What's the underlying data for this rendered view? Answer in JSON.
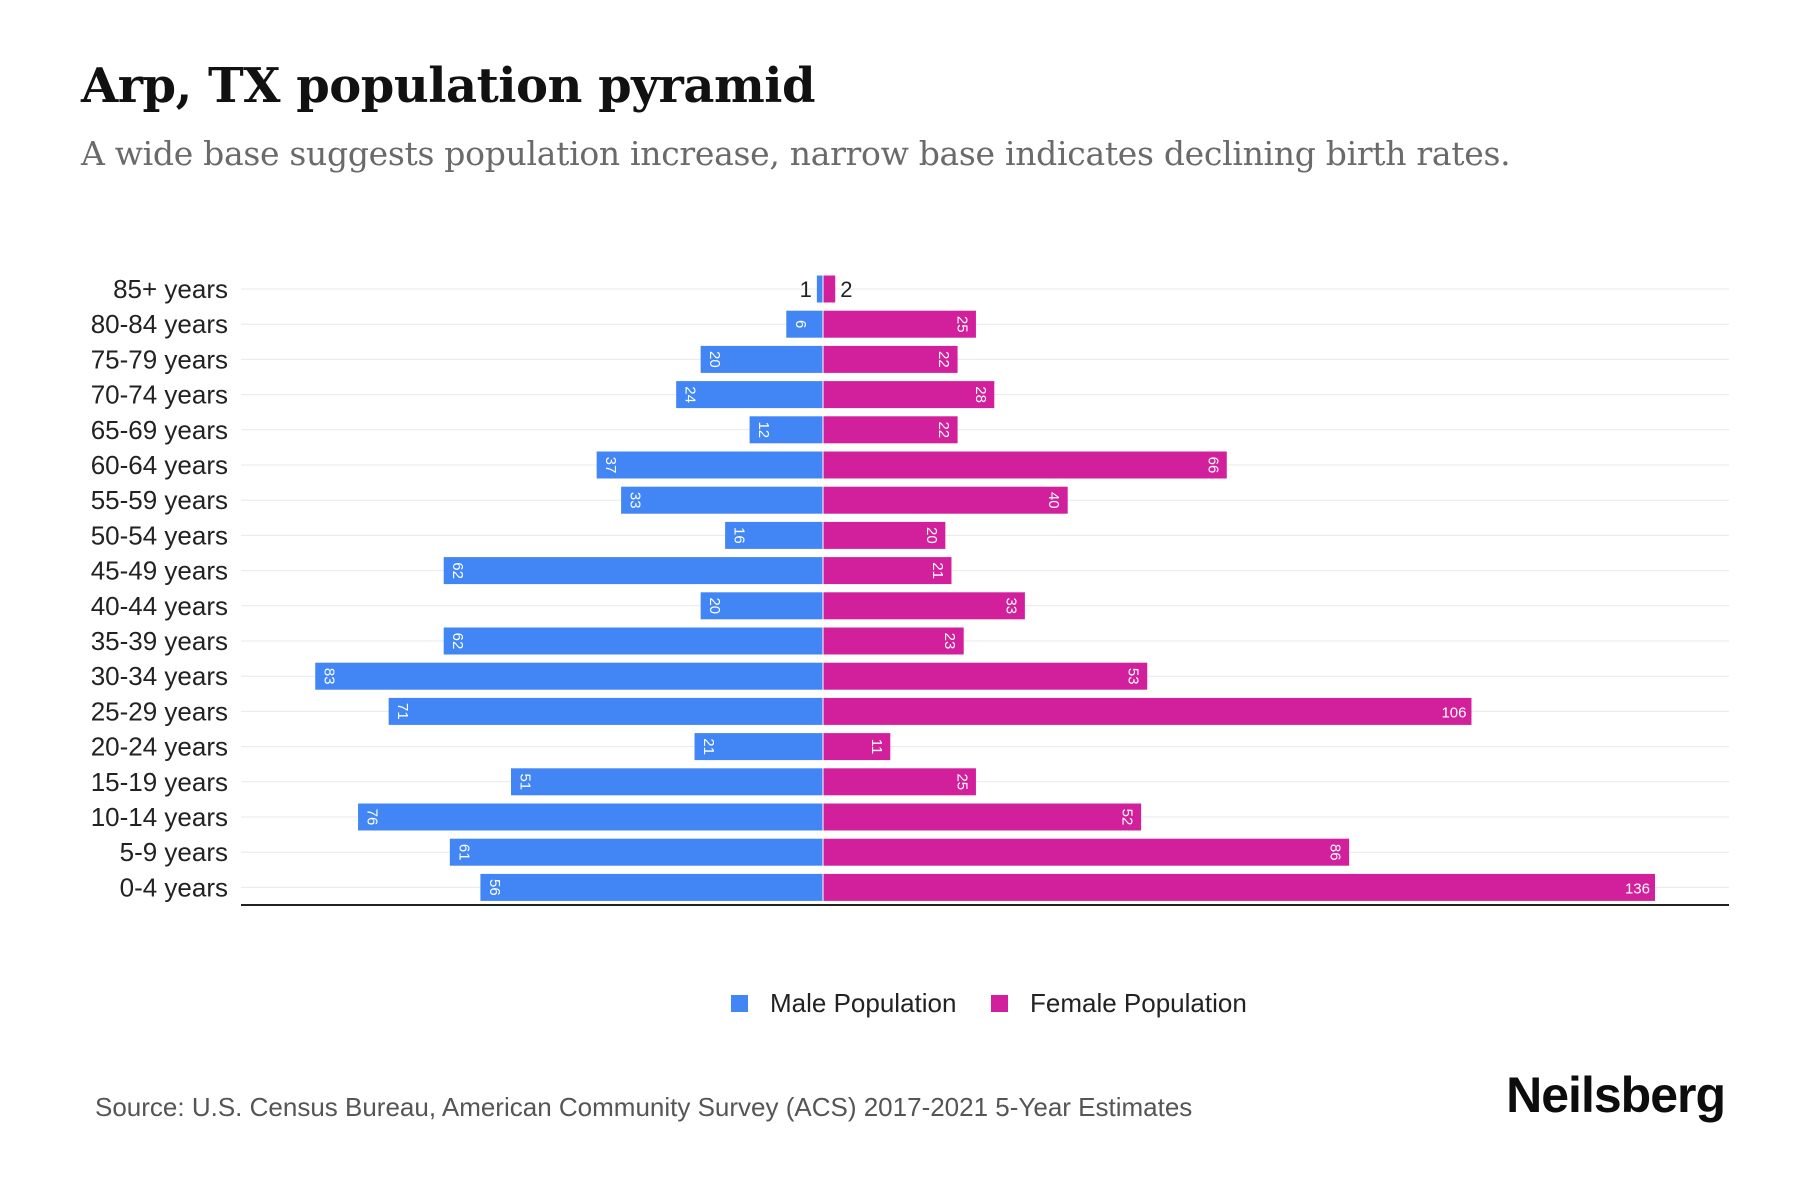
{
  "header": {
    "title": "Arp, TX population pyramid",
    "subtitle": "A wide base suggests population increase, narrow base indicates declining birth rates."
  },
  "footer": {
    "source": "Source: U.S. Census Bureau, American Community Survey (ACS) 2017-2021 5-Year Estimates",
    "brand": "Neilsberg"
  },
  "colors": {
    "male": "#4285f4",
    "female": "#d21f9b",
    "gridline": "#e8e8e8",
    "axis": "#222222",
    "label": "#222222"
  },
  "chart_data": {
    "type": "bar",
    "orientation": "horizontal-diverging",
    "categories": [
      "85+ years",
      "80-84 years",
      "75-79 years",
      "70-74 years",
      "65-69 years",
      "60-64 years",
      "55-59 years",
      "50-54 years",
      "45-49 years",
      "40-44 years",
      "35-39 years",
      "30-34 years",
      "25-29 years",
      "20-24 years",
      "15-19 years",
      "10-14 years",
      "5-9 years",
      "0-4 years"
    ],
    "series": [
      {
        "name": "Male Population",
        "values": [
          1,
          6,
          20,
          24,
          12,
          37,
          33,
          16,
          62,
          20,
          62,
          83,
          71,
          21,
          51,
          76,
          61,
          56
        ]
      },
      {
        "name": "Female Population",
        "values": [
          2,
          25,
          22,
          28,
          22,
          66,
          40,
          20,
          21,
          33,
          23,
          53,
          106,
          11,
          25,
          52,
          86,
          136
        ]
      }
    ],
    "xlim": [
      -136,
      136
    ],
    "grid": true,
    "legend_position": "bottom-center"
  }
}
